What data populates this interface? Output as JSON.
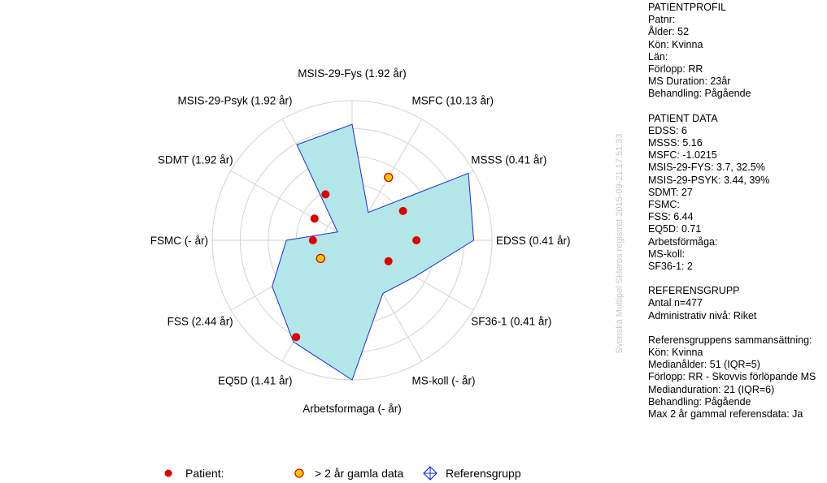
{
  "chart_data": {
    "type": "radar",
    "axes": [
      "MSIS-29-Fys (1.92 år)",
      "MSFC (10.13 år)",
      "MSSS (0.41 år)",
      "EDSS (0.41 år)",
      "SF36-1 (0.41 år)",
      "MS-koll (- år)",
      "Arbetsformaga (- år)",
      "EQ5D (1.41 år)",
      "FSS (2.44 år)",
      "FSMC (- år)",
      "SDMT (1.92 år)",
      "MSIS-29-Psyk (1.92 år)"
    ],
    "rlim": [
      0,
      5
    ],
    "rings": 5,
    "grid": true,
    "series": [
      {
        "name": "Referensgrupp",
        "values": [
          4.15,
          1.15,
          4.8,
          4.35,
          2.6,
          2.2,
          5.0,
          4.2,
          3.3,
          2.35,
          0.6,
          3.95
        ],
        "fill": "#b3e6e8",
        "stroke": "#1a2ed8"
      },
      {
        "name": "Patient:",
        "points": [
          {
            "axis": 2,
            "value": 2.1,
            "old": false
          },
          {
            "axis": 3,
            "value": 2.3,
            "old": false
          },
          {
            "axis": 4,
            "value": 1.5,
            "old": false
          },
          {
            "axis": 7,
            "value": 4.0,
            "old": false
          },
          {
            "axis": 8,
            "value": 1.3,
            "old": true
          },
          {
            "axis": 9,
            "value": 1.4,
            "old": false
          },
          {
            "axis": 10,
            "value": 1.55,
            "old": false
          },
          {
            "axis": 11,
            "value": 1.9,
            "old": false
          },
          {
            "axis": 1,
            "value": 2.6,
            "old": true
          }
        ],
        "color": "#e00000",
        "old_color": "#ffcc00"
      }
    ],
    "legend": {
      "position": "bottom",
      "patient": "Patient:",
      "old": "> 2 år gamla data",
      "reference": "Referensgrupp"
    }
  },
  "side_panel": {
    "sections": [
      {
        "title": "PATIENTPROFIL",
        "lines": [
          "Patnr:",
          "Ålder: 52",
          "Kön: Kvinna",
          "Län:",
          "Förlopp: RR",
          "MS Duration: 23år",
          "Behandling: Pågående"
        ]
      },
      {
        "title": "PATIENT DATA",
        "lines": [
          "EDSS: 6",
          "MSSS: 5.16",
          "MSFC: -1.0215",
          "MSIS-29-FYS: 3.7, 32.5%",
          "MSIS-29-PSYK: 3.44, 39%",
          "SDMT: 27",
          "FSMC:",
          "FSS: 6.44",
          "EQ5D: 0.71",
          "Arbetsförmåga:",
          "MS-koll:",
          "SF36-1: 2"
        ]
      },
      {
        "title": "REFERENSGRUPP",
        "lines": [
          "Antal n=477",
          "Administrativ nivå: Riket"
        ]
      },
      {
        "title": "Referensgruppens sammansättning:",
        "lines": [
          "Kön: Kvinna",
          "Medianålder: 51 (IQR=5)",
          "Förlopp: RR - Skovvis förlöpande MS",
          "Medianduration: 21 (IQR=6)",
          "Behandling: Pågående",
          "Max 2 år gammal referensdata: Ja"
        ]
      }
    ]
  },
  "watermark": "Svenska Multipel Skleros registret 2015-09-21 17:51:33"
}
